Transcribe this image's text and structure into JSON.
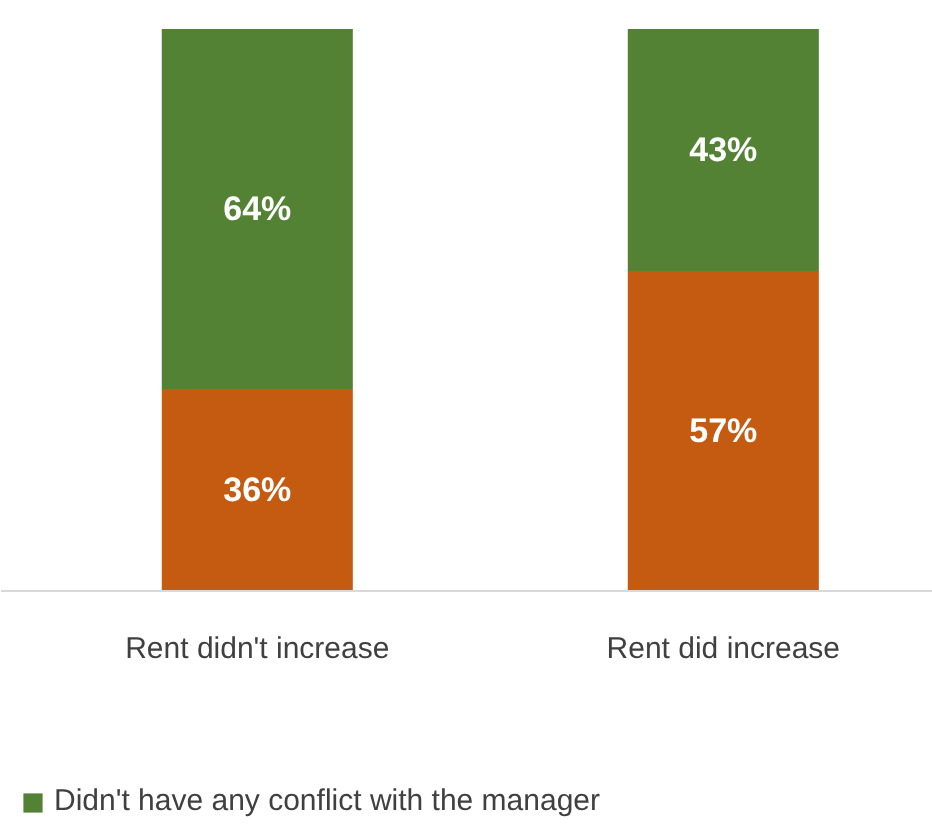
{
  "chart_data": {
    "type": "bar",
    "stacked": true,
    "categories": [
      "Rent didn't increase",
      "Rent did increase"
    ],
    "series": [
      {
        "color": "#c55a11",
        "values": [
          36,
          57
        ],
        "value_labels": [
          "36%",
          "57%"
        ]
      },
      {
        "name": "Didn't have any conflict with the manager",
        "color": "#548235",
        "values": [
          64,
          43
        ],
        "value_labels": [
          "64%",
          "43%"
        ]
      }
    ],
    "legend": "bottom left"
  }
}
